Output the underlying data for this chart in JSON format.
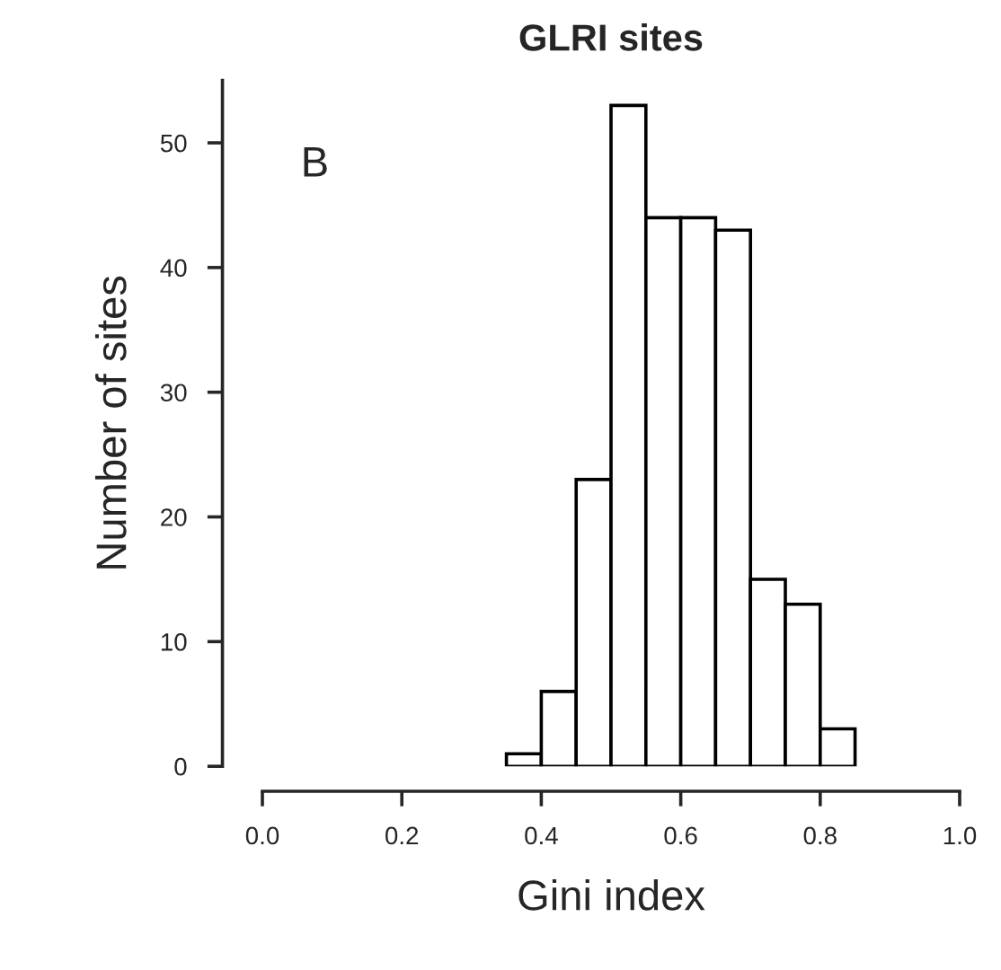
{
  "chart_data": {
    "type": "histogram",
    "title": "GLRI sites",
    "xlabel": "Gini index",
    "ylabel": "Number of sites",
    "annotations": [
      "B"
    ],
    "bins": [
      0.35,
      0.4,
      0.45,
      0.5,
      0.55,
      0.6,
      0.65,
      0.7,
      0.75,
      0.8,
      0.85
    ],
    "values": [
      1,
      6,
      23,
      53,
      44,
      44,
      43,
      15,
      13,
      3
    ],
    "color": "#ffffff",
    "xlim": [
      0,
      1
    ],
    "ylim": [
      0,
      55
    ],
    "xticks": [
      {
        "value": 0,
        "label": "0.0"
      },
      0.2,
      0.4,
      0.6,
      0.8,
      {
        "value": 1,
        "label": "1.0"
      }
    ],
    "yticks": [
      0,
      10,
      20,
      30,
      40,
      50
    ],
    "grid": false,
    "legend": false
  }
}
